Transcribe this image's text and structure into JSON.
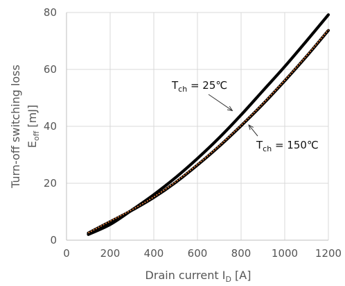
{
  "chart_data": {
    "type": "line",
    "title": "",
    "xlabel": {
      "main": "Drain current  I",
      "sub": "D",
      "unit": " [A]"
    },
    "ylabel": {
      "line1": "Turn-off switching loss",
      "line2_main": "E",
      "line2_sub": "off",
      "line2_unit": " [mJ]"
    },
    "xlim": [
      0,
      1200
    ],
    "ylim": [
      0,
      80
    ],
    "xticks": [
      0,
      200,
      400,
      600,
      800,
      1000,
      1200
    ],
    "yticks": [
      0,
      20,
      40,
      60,
      80
    ],
    "grid": true,
    "series": [
      {
        "name": "T_ch = 25℃",
        "color": "#000000",
        "x": [
          100,
          200,
          300,
          400,
          500,
          600,
          700,
          800,
          900,
          1000,
          1100,
          1200
        ],
        "y": [
          2.0,
          5.5,
          10.6,
          16.0,
          22.0,
          28.7,
          36.0,
          44.0,
          52.5,
          61.0,
          70.0,
          79.2
        ]
      },
      {
        "name": "T_ch = 150℃",
        "color": "#000000",
        "x": [
          100,
          200,
          300,
          400,
          500,
          600,
          700,
          800,
          900,
          1000,
          1100,
          1200
        ],
        "y": [
          2.5,
          6.5,
          10.5,
          15.0,
          20.3,
          26.4,
          33.0,
          40.2,
          47.8,
          56.0,
          64.6,
          73.7
        ]
      },
      {
        "name": "",
        "color": "#e07b39",
        "style": "dotted",
        "x": [
          100,
          200,
          300,
          400,
          500,
          600,
          700,
          800,
          900,
          1000,
          1100,
          1200
        ],
        "y": [
          2.6,
          6.7,
          10.7,
          15.2,
          20.5,
          26.6,
          33.2,
          40.4,
          48.0,
          56.2,
          64.8,
          73.9
        ]
      }
    ],
    "annotations": [
      {
        "label_main": "T",
        "label_sub": "ch",
        "label_rest": " = 25℃",
        "arrow_to": [
          760,
          45.5
        ]
      },
      {
        "label_main": "T",
        "label_sub": "ch",
        "label_rest": " = 150℃",
        "arrow_to": [
          835,
          40.5
        ]
      }
    ]
  }
}
